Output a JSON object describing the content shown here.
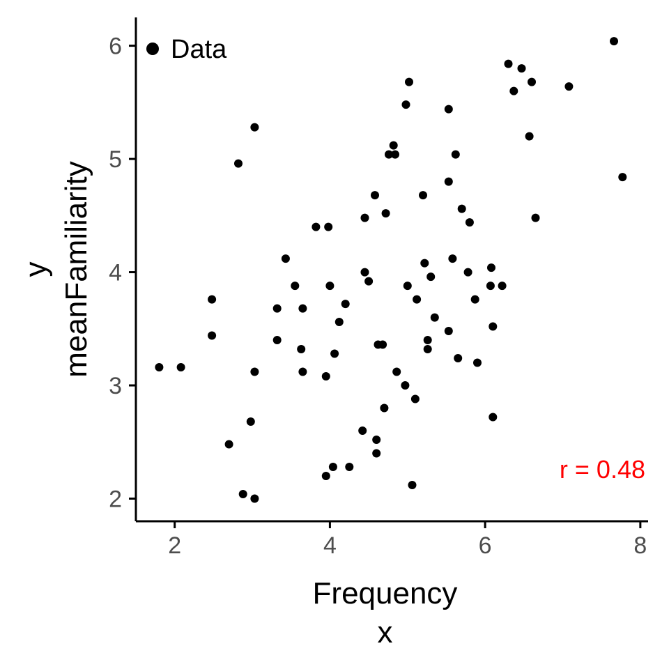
{
  "colors": {
    "point": "#000000",
    "axis": "#000000",
    "tick_label": "#4d4d4d",
    "annotation": "#ff0000"
  },
  "chart_data": {
    "type": "scatter",
    "xlabel_lines": [
      "Frequency",
      "x"
    ],
    "ylabel_lines": [
      "y",
      "meanFamiliarity"
    ],
    "xlim": [
      1.5,
      8.1
    ],
    "ylim": [
      1.8,
      6.25
    ],
    "xticks": [
      2,
      4,
      6,
      8
    ],
    "yticks": [
      2,
      3,
      4,
      5,
      6
    ],
    "grid": false,
    "legend": {
      "position": "top-left",
      "entries": [
        "Data"
      ]
    },
    "annotation": {
      "text": "r = 0.48",
      "position": "bottom-right"
    },
    "series": [
      {
        "name": "Data",
        "points": [
          [
            1.8,
            3.16
          ],
          [
            2.08,
            3.16
          ],
          [
            2.48,
            3.76
          ],
          [
            2.48,
            3.44
          ],
          [
            2.7,
            2.48
          ],
          [
            2.82,
            4.96
          ],
          [
            2.88,
            2.04
          ],
          [
            2.98,
            2.68
          ],
          [
            3.03,
            5.28
          ],
          [
            3.03,
            3.12
          ],
          [
            3.03,
            2.0
          ],
          [
            3.32,
            3.68
          ],
          [
            3.32,
            3.4
          ],
          [
            3.43,
            4.12
          ],
          [
            3.55,
            3.88
          ],
          [
            3.63,
            3.32
          ],
          [
            3.65,
            3.68
          ],
          [
            3.65,
            3.12
          ],
          [
            3.82,
            4.4
          ],
          [
            3.95,
            3.08
          ],
          [
            3.95,
            2.2
          ],
          [
            3.98,
            4.4
          ],
          [
            4.0,
            3.88
          ],
          [
            4.04,
            2.28
          ],
          [
            4.06,
            3.28
          ],
          [
            4.12,
            3.56
          ],
          [
            4.2,
            3.72
          ],
          [
            4.25,
            2.28
          ],
          [
            4.42,
            2.6
          ],
          [
            4.45,
            4.48
          ],
          [
            4.45,
            4.0
          ],
          [
            4.5,
            3.92
          ],
          [
            4.58,
            4.68
          ],
          [
            4.6,
            2.52
          ],
          [
            4.6,
            2.4
          ],
          [
            4.62,
            3.36
          ],
          [
            4.68,
            3.36
          ],
          [
            4.7,
            2.8
          ],
          [
            4.72,
            4.52
          ],
          [
            4.76,
            5.04
          ],
          [
            4.82,
            5.12
          ],
          [
            4.84,
            5.04
          ],
          [
            4.86,
            3.12
          ],
          [
            4.97,
            3.0
          ],
          [
            4.98,
            5.48
          ],
          [
            5.0,
            3.88
          ],
          [
            5.02,
            5.68
          ],
          [
            5.06,
            2.12
          ],
          [
            5.1,
            2.88
          ],
          [
            5.12,
            3.76
          ],
          [
            5.2,
            4.68
          ],
          [
            5.22,
            4.08
          ],
          [
            5.26,
            3.4
          ],
          [
            5.26,
            3.32
          ],
          [
            5.3,
            3.96
          ],
          [
            5.35,
            3.6
          ],
          [
            5.53,
            5.44
          ],
          [
            5.53,
            4.8
          ],
          [
            5.53,
            3.48
          ],
          [
            5.58,
            4.12
          ],
          [
            5.62,
            5.04
          ],
          [
            5.65,
            3.24
          ],
          [
            5.7,
            4.56
          ],
          [
            5.78,
            4.0
          ],
          [
            5.8,
            4.44
          ],
          [
            5.87,
            3.76
          ],
          [
            5.9,
            3.2
          ],
          [
            6.07,
            3.88
          ],
          [
            6.08,
            4.04
          ],
          [
            6.1,
            3.52
          ],
          [
            6.1,
            2.72
          ],
          [
            6.22,
            3.88
          ],
          [
            6.3,
            5.84
          ],
          [
            6.37,
            5.6
          ],
          [
            6.47,
            5.8
          ],
          [
            6.57,
            5.2
          ],
          [
            6.6,
            5.68
          ],
          [
            6.65,
            4.48
          ],
          [
            7.08,
            5.64
          ],
          [
            7.66,
            6.04
          ],
          [
            7.77,
            4.84
          ]
        ]
      }
    ]
  }
}
